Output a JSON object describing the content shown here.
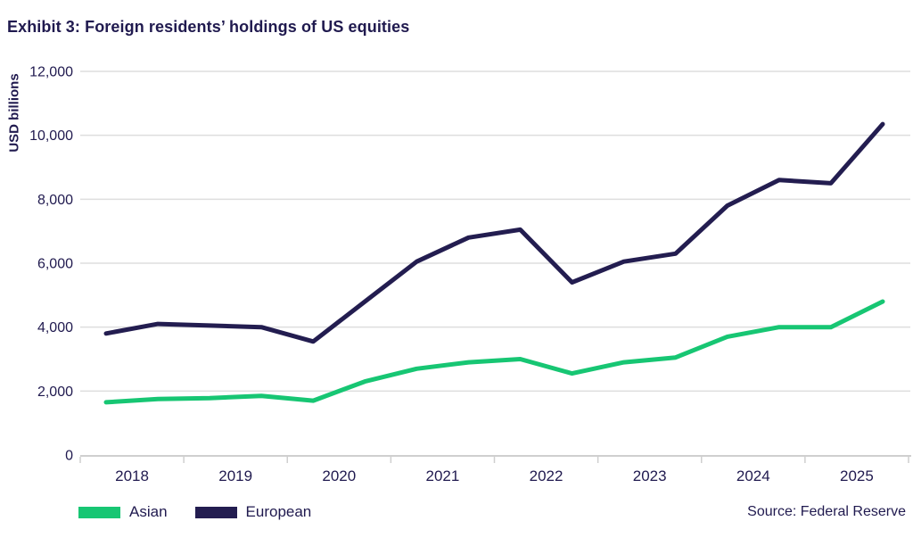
{
  "title": "Exhibit 3: Foreign residents’ holdings of US equities",
  "y_axis_label": "USD billions",
  "source": "Source: Federal Reserve",
  "colors": {
    "text": "#201a4f",
    "navy": "#231d50",
    "green": "#17c673",
    "gridline": "#dedede",
    "axis": "#cfcfcf"
  },
  "chart_data": {
    "type": "line",
    "title": "Exhibit 3: Foreign residents’ holdings of US equities",
    "ylabel": "USD billions",
    "ylim": [
      0,
      12000
    ],
    "y_ticks": [
      0,
      2000,
      4000,
      6000,
      8000,
      10000,
      12000
    ],
    "grid": "horizontal",
    "legend_position": "bottom-left",
    "x_axis_years": [
      2018,
      2019,
      2020,
      2021,
      2022,
      2023,
      2024,
      2025
    ],
    "x_domain": [
      2018,
      2026
    ],
    "x": [
      2018.25,
      2018.75,
      2019.25,
      2019.75,
      2020.25,
      2020.75,
      2021.25,
      2021.75,
      2022.25,
      2022.75,
      2023.25,
      2023.75,
      2024.25,
      2024.75,
      2025.25,
      2025.75
    ],
    "series": [
      {
        "name": "Asian",
        "color": "#17c673",
        "values": [
          1650,
          1750,
          1780,
          1850,
          1700,
          2300,
          2700,
          2900,
          3000,
          2550,
          2900,
          3050,
          3700,
          4000,
          4000,
          4800
        ]
      },
      {
        "name": "European",
        "color": "#231d50",
        "values": [
          3800,
          4100,
          4050,
          4000,
          3550,
          4800,
          6050,
          6800,
          7050,
          5400,
          6050,
          6300,
          7800,
          8600,
          8500,
          10350
        ]
      }
    ]
  }
}
